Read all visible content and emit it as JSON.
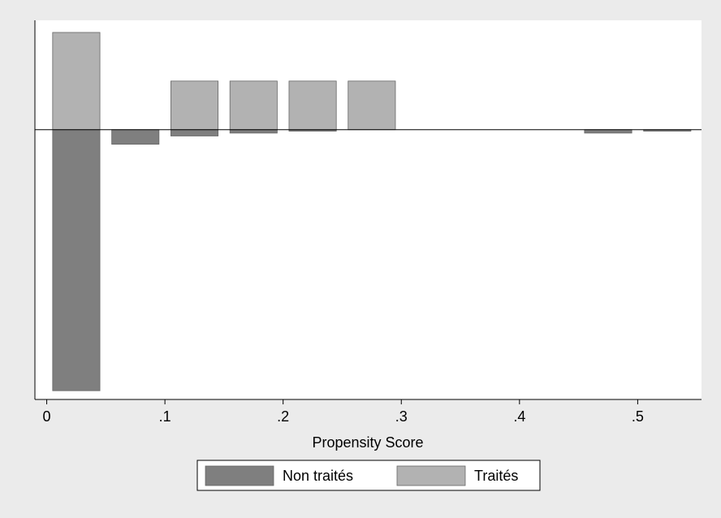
{
  "chart_data": {
    "type": "histogram",
    "xlabel": "Propensity Score",
    "bins": [
      0,
      0.05,
      0.1,
      0.15,
      0.2,
      0.25,
      0.3,
      0.35,
      0.4,
      0.45,
      0.5,
      0.55
    ],
    "series": [
      {
        "name": "Non traités",
        "color": "#7f7f7f",
        "values": [
          -5.37,
          -0.3,
          -0.13,
          -0.07,
          -0.03,
          0,
          0,
          0,
          0,
          -0.07,
          -0.03
        ]
      },
      {
        "name": "Traités",
        "color": "#b2b2b2",
        "values": [
          2,
          0,
          1,
          1,
          1,
          1,
          0,
          0,
          0,
          0,
          0
        ]
      }
    ],
    "xlim": [
      -0.01,
      0.554
    ],
    "ylim": [
      -5.55,
      2.25
    ],
    "xticks": [
      0,
      {
        "value": 0.1,
        "label": ".1"
      },
      {
        "value": 0.2,
        "label": ".2"
      },
      {
        "value": 0.3,
        "label": ".3"
      },
      {
        "value": 0.4,
        "label": ".4"
      },
      {
        "value": 0.5,
        "label": ".5"
      }
    ],
    "legend": "bottom"
  }
}
